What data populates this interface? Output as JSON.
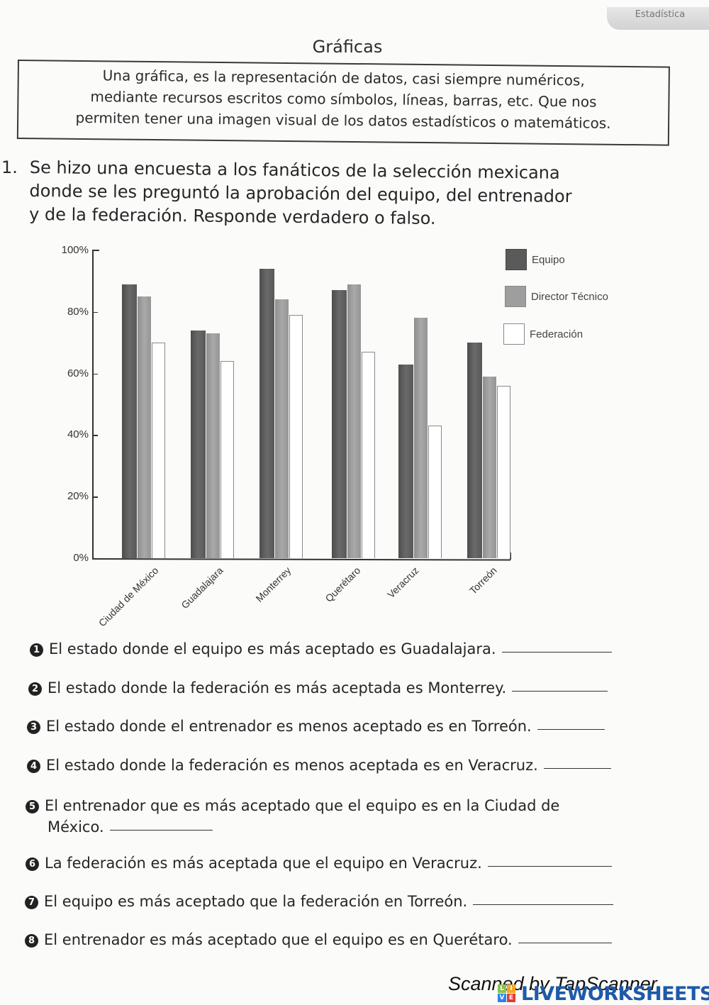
{
  "header": {
    "corner_tab": "Estadística",
    "title": "Gráficas"
  },
  "definition": {
    "lines": [
      "Una gráfica, es la representación de datos, casi siempre numéricos,",
      "mediante recursos escritos como símbolos, líneas, barras, etc. Que nos",
      "permiten tener una imagen visual de los datos estadísticos o matemáticos."
    ]
  },
  "question": {
    "number": "1.",
    "lines": [
      "Se hizo una encuesta a los fanáticos de la selección mexicana",
      "donde se les preguntó la aprobación del equipo, del entrenador",
      "y de la federación. Responde verdadero o falso."
    ]
  },
  "chart_data": {
    "type": "bar",
    "title": "",
    "xlabel": "",
    "ylabel": "",
    "ylim": [
      0,
      100
    ],
    "yticks": [
      "0%",
      "20%",
      "40%",
      "60%",
      "80%",
      "100%"
    ],
    "grid": false,
    "legend_position": "right",
    "categories": [
      "Ciudad de México",
      "Guadalajara",
      "Monterrey",
      "Querétaro",
      "Veracruz",
      "Torreón"
    ],
    "series": [
      {
        "name": "Equipo",
        "color": "#5a5a5a",
        "values": [
          89,
          74,
          94,
          87,
          63,
          70
        ]
      },
      {
        "name": "Director Técnico",
        "color": "#9e9e9e",
        "values": [
          85,
          73,
          84,
          89,
          78,
          59
        ]
      },
      {
        "name": "Federación",
        "color": "#ffffff",
        "values": [
          70,
          64,
          79,
          67,
          43,
          56
        ]
      }
    ]
  },
  "items": [
    {
      "num": "1",
      "text": "El estado donde el equipo es más aceptado es Guadalajara."
    },
    {
      "num": "2",
      "text": "El estado donde la federación es más aceptada es Monterrey."
    },
    {
      "num": "3",
      "text": "El estado donde el entrenador es menos aceptado es en Torreón."
    },
    {
      "num": "4",
      "text": "El estado donde la federación es menos aceptada es en Veracruz."
    },
    {
      "num": "5",
      "text": "El entrenador que es más aceptado que el equipo es en la Ciudad de",
      "text2": "México."
    },
    {
      "num": "6",
      "text": "La federación es más aceptada que el equipo en Veracruz."
    },
    {
      "num": "7",
      "text": "El equipo es más aceptado que la federación en Torreón."
    },
    {
      "num": "8",
      "text": "El entrenador es más aceptado que el equipo es en Querétaro."
    }
  ],
  "footer": {
    "scanned": "Scanned by TapScanner",
    "watermark": "LIVEWORKSHEETS",
    "logo_letters": [
      "L",
      "I",
      "V",
      "E"
    ]
  }
}
